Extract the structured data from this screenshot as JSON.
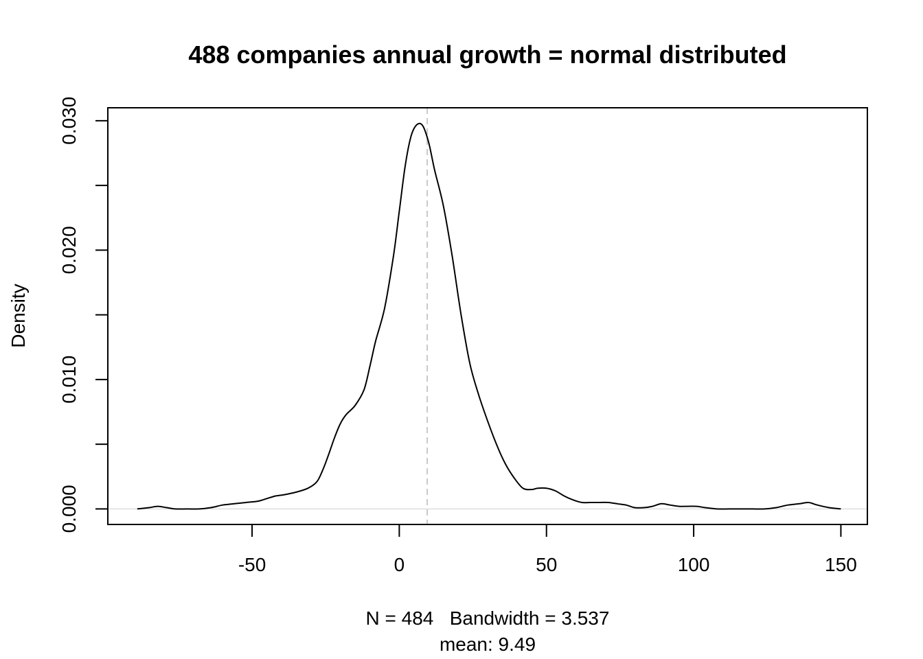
{
  "chart_data": {
    "type": "line",
    "title": "488 companies annual growth = normal distributed",
    "ylabel": "Density",
    "xlabel": "N = 484   Bandwidth = 3.537",
    "xlabel_sub": "mean: 9.49",
    "xlim": [
      -99,
      159
    ],
    "ylim": [
      -0.0012,
      0.031
    ],
    "x_ticks": [
      -50,
      0,
      50,
      100,
      150
    ],
    "x_tick_labels": [
      "-50",
      "0",
      "50",
      "100",
      "150"
    ],
    "y_ticks": [
      0.0,
      0.005,
      0.01,
      0.015,
      0.02,
      0.025,
      0.03
    ],
    "y_tick_labels": [
      "0.000",
      "",
      "0.010",
      "",
      "0.020",
      "",
      "0.030"
    ],
    "mean_line": 9.49,
    "zero_line": 0,
    "series": [
      {
        "x": [
          -89,
          -85,
          -82,
          -79,
          -76,
          -72,
          -68,
          -64,
          -60,
          -56,
          -52,
          -48,
          -45,
          -42,
          -39,
          -35,
          -31,
          -28,
          -26,
          -24,
          -22,
          -20,
          -18,
          -15,
          -12,
          -10,
          -8,
          -5,
          -2,
          0,
          2,
          4,
          6,
          8,
          10,
          12,
          15,
          18,
          21,
          24,
          27,
          30,
          33,
          36,
          39,
          42,
          45,
          47,
          50,
          53,
          56,
          59,
          62,
          65,
          68,
          71,
          74,
          77,
          80,
          83,
          86,
          89,
          92,
          95,
          98,
          101,
          104,
          108,
          112,
          116,
          120,
          124,
          128,
          132,
          136,
          139,
          142,
          146,
          150
        ],
        "y": [
          0.0,
          0.0001,
          0.0002,
          0.0001,
          0.0,
          0.0,
          0.0,
          0.0001,
          0.0003,
          0.0004,
          0.0005,
          0.0006,
          0.0008,
          0.001,
          0.0011,
          0.0013,
          0.0016,
          0.0021,
          0.003,
          0.0042,
          0.0055,
          0.0066,
          0.0073,
          0.008,
          0.0092,
          0.011,
          0.013,
          0.0155,
          0.0195,
          0.023,
          0.0265,
          0.0288,
          0.0297,
          0.0296,
          0.0283,
          0.0262,
          0.0234,
          0.0195,
          0.015,
          0.0112,
          0.0088,
          0.0068,
          0.005,
          0.0035,
          0.0024,
          0.0016,
          0.0015,
          0.0016,
          0.0016,
          0.0014,
          0.001,
          0.0007,
          0.0005,
          0.0005,
          0.0005,
          0.0005,
          0.0004,
          0.0003,
          0.0001,
          0.0001,
          0.0002,
          0.0004,
          0.0003,
          0.0002,
          0.0002,
          0.0002,
          0.0001,
          0.0,
          0.0,
          0.0,
          0.0,
          0.0,
          0.0001,
          0.0003,
          0.0004,
          0.0005,
          0.0003,
          0.0001,
          0.0
        ]
      }
    ]
  }
}
